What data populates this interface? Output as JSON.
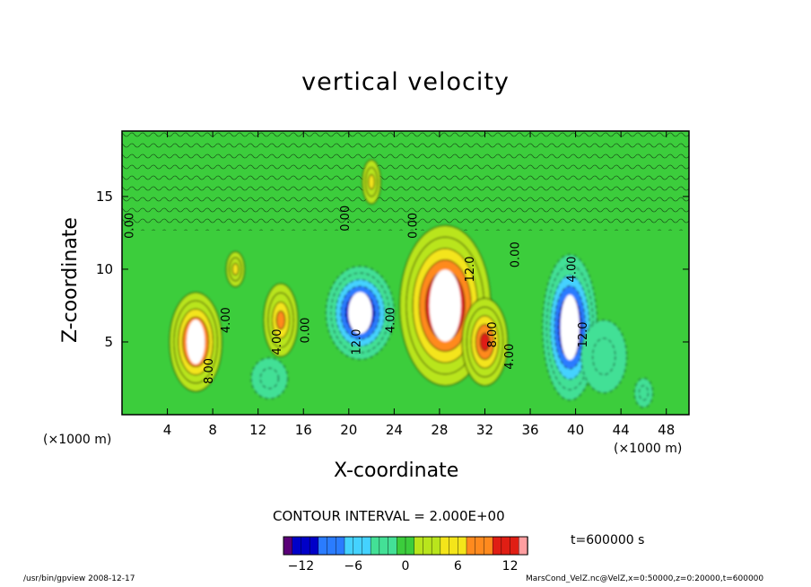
{
  "chart_data": {
    "type": "heatmap",
    "title": "vertical velocity",
    "xlabel": "X-coordinate",
    "ylabel": "Z-coordinate",
    "x_unit": "(×1000 m)",
    "xlim": [
      0,
      50
    ],
    "ylim": [
      0,
      19.5
    ],
    "x_ticks": [
      4,
      8,
      12,
      16,
      20,
      24,
      28,
      32,
      36,
      40,
      44,
      48
    ],
    "y_ticks": [
      5,
      10,
      15
    ],
    "contour_interval_text": "CONTOUR INTERVAL = 2.000E+00",
    "colorbar": {
      "range": [
        -14,
        14
      ],
      "ticks": [
        -12,
        -6,
        0,
        6,
        12
      ],
      "tick_labels": [
        "−12",
        "−6",
        "0",
        "6",
        "12"
      ],
      "colors": [
        "#5a0078",
        "#0000c8",
        "#2a7cff",
        "#44d2ff",
        "#43e096",
        "#3ccd3c",
        "#b9e51c",
        "#f4e51a",
        "#ff8a1e",
        "#e01e14",
        "#ff9ea0"
      ]
    },
    "features": [
      {
        "x": 6.5,
        "z": 5.0,
        "rx": 2.3,
        "rz": 3.4,
        "peak": 12
      },
      {
        "x": 10.0,
        "z": 10.0,
        "rx": 0.8,
        "rz": 1.2,
        "peak": 6
      },
      {
        "x": 14.0,
        "z": 6.5,
        "rx": 1.5,
        "rz": 2.5,
        "peak": 7
      },
      {
        "x": 13.0,
        "z": 2.5,
        "rx": 1.6,
        "rz": 1.4,
        "peak": -4
      },
      {
        "x": 21.0,
        "z": 7.0,
        "rx": 3.0,
        "rz": 3.2,
        "peak": -14
      },
      {
        "x": 28.5,
        "z": 7.5,
        "rx": 4.0,
        "rz": 5.5,
        "peak": 14
      },
      {
        "x": 32.0,
        "z": 5.0,
        "rx": 2.0,
        "rz": 3.0,
        "peak": 10
      },
      {
        "x": 39.5,
        "z": 6.0,
        "rx": 2.4,
        "rz": 5.0,
        "peak": -14
      },
      {
        "x": 42.5,
        "z": 4.0,
        "rx": 2.0,
        "rz": 2.5,
        "peak": -4
      },
      {
        "x": 46.0,
        "z": 1.5,
        "rx": 0.8,
        "rz": 1.0,
        "peak": -3
      },
      {
        "x": 22.0,
        "z": 16.0,
        "rx": 0.8,
        "rz": 1.5,
        "peak": 5
      }
    ],
    "contour_labels": [
      {
        "text": "4.00",
        "x": 9.5,
        "z": 6.5
      },
      {
        "text": "8.00",
        "x": 8.0,
        "z": 3.0
      },
      {
        "text": "4.00",
        "x": 14.0,
        "z": 5.0
      },
      {
        "text": "0.00",
        "x": 16.5,
        "z": 5.8
      },
      {
        "text": "12.0",
        "x": 21.0,
        "z": 5.0
      },
      {
        "text": "4.00",
        "x": 24.0,
        "z": 6.5
      },
      {
        "text": "0.00",
        "x": 26.0,
        "z": 13.0
      },
      {
        "text": "12.0",
        "x": 31.0,
        "z": 10.0
      },
      {
        "text": "0.00",
        "x": 35.0,
        "z": 11.0
      },
      {
        "text": "8.00",
        "x": 33.0,
        "z": 5.5
      },
      {
        "text": "4.00",
        "x": 34.5,
        "z": 4.0
      },
      {
        "text": "0.00",
        "x": 20.0,
        "z": 13.5
      },
      {
        "text": "4.00",
        "x": 40.0,
        "z": 10.0
      },
      {
        "text": "12.0",
        "x": 41.0,
        "z": 5.5
      },
      {
        "text": "0.00",
        "x": 1.0,
        "z": 13.0
      }
    ]
  },
  "annotations": {
    "time": "t=600000 s",
    "footer_left": "/usr/bin/gpview   2008-12-17",
    "footer_right": "MarsCond_VelZ.nc@VelZ,x=0:50000,z=0:20000,t=600000"
  }
}
